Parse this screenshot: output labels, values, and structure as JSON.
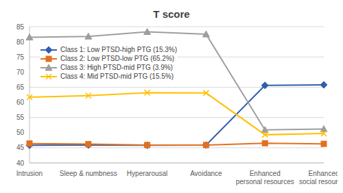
{
  "chart_data": {
    "type": "line",
    "title": "T score",
    "categories": [
      "Intrusion",
      "Sleep & numbness",
      "Hyperarousal",
      "Avoidance",
      "Enhanced personal resources",
      "Enhanced social resources"
    ],
    "series": [
      {
        "name": "Class 1: Low PTSD-high PTG (15.3%)",
        "color": "#2F5FAD",
        "marker": "diamond",
        "values": [
          45.8,
          45.9,
          45.8,
          45.9,
          65.6,
          65.8
        ]
      },
      {
        "name": "Class 2: Low PTSD-low PTG (65.2%)",
        "color": "#E2701F",
        "marker": "square",
        "values": [
          46.4,
          46.2,
          45.9,
          45.9,
          46.5,
          46.3
        ]
      },
      {
        "name": "Class 3: High PTSD-mid PTG (3.9%)",
        "color": "#9E9E9E",
        "marker": "triangle",
        "values": [
          81.5,
          81.8,
          83.3,
          82.5,
          50.9,
          51.2
        ]
      },
      {
        "name": "Class 4: Mid PTSD-mid PTG (15.5%)",
        "color": "#FFC000",
        "marker": "x",
        "values": [
          61.7,
          62.2,
          63.2,
          63.1,
          49.3,
          49.7
        ]
      }
    ],
    "ylim": [
      40,
      85
    ],
    "yticks": [
      40,
      45,
      50,
      55,
      60,
      65,
      70,
      75,
      80,
      85
    ],
    "grid": true,
    "legend": "left"
  }
}
